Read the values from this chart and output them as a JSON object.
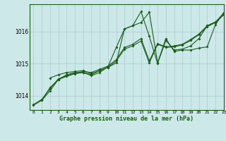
{
  "title": "Graphe pression niveau de la mer (hPa)",
  "bg_color": "#cce8e8",
  "grid_color": "#aacccc",
  "line_color": "#1a5c1a",
  "xlim": [
    -0.5,
    23
  ],
  "ylim": [
    1013.55,
    1016.85
  ],
  "yticks": [
    1014,
    1015,
    1016
  ],
  "xtick_labels": [
    "0",
    "1",
    "2",
    "3",
    "4",
    "5",
    "6",
    "7",
    "8",
    "9",
    "10",
    "11",
    "12",
    "13",
    "14",
    "15",
    "16",
    "17",
    "18",
    "19",
    "20",
    "21",
    "22",
    "23"
  ],
  "line1_x": [
    0,
    1,
    2,
    3,
    4,
    5,
    6,
    7,
    8,
    9,
    10,
    11,
    12,
    13,
    14,
    15,
    16,
    17,
    18,
    19,
    20,
    21,
    22,
    23
  ],
  "line1_y": [
    1013.7,
    1013.85,
    1014.25,
    1014.5,
    1014.6,
    1014.68,
    1014.72,
    1014.65,
    1014.78,
    1014.88,
    1015.08,
    1015.45,
    1015.55,
    1015.7,
    1015.02,
    1015.6,
    1015.5,
    1015.52,
    1015.58,
    1015.72,
    1015.9,
    1016.15,
    1016.28,
    1016.52
  ],
  "line2_x": [
    0,
    1,
    2,
    3,
    4,
    5,
    6,
    7,
    8,
    9,
    10,
    11,
    12,
    13,
    14,
    15,
    16,
    17,
    18,
    19,
    20,
    21,
    22,
    23
  ],
  "line2_y": [
    1013.72,
    1013.88,
    1014.22,
    1014.52,
    1014.62,
    1014.7,
    1014.75,
    1014.72,
    1014.82,
    1014.92,
    1015.12,
    1015.5,
    1015.6,
    1015.78,
    1015.08,
    1015.62,
    1015.52,
    1015.55,
    1015.6,
    1015.75,
    1015.92,
    1016.18,
    1016.3,
    1016.55
  ],
  "line3_x": [
    1,
    2,
    3,
    4,
    5,
    6,
    7,
    8,
    9,
    10,
    11,
    12,
    13,
    14,
    15,
    16,
    17,
    18,
    19,
    20,
    21,
    22,
    23
  ],
  "line3_y": [
    1013.85,
    1014.15,
    1014.5,
    1014.65,
    1014.72,
    1014.72,
    1014.62,
    1014.72,
    1014.9,
    1015.5,
    1016.08,
    1016.18,
    1016.62,
    1015.85,
    1015.0,
    1015.72,
    1015.42,
    1015.45,
    1015.55,
    1015.78,
    1016.18,
    1016.28,
    1016.58
  ],
  "line4_x": [
    2,
    3,
    4,
    5,
    6,
    7,
    8,
    9,
    10,
    11,
    12,
    13,
    14,
    15,
    16,
    17,
    18,
    19,
    20,
    21,
    22,
    23
  ],
  "line4_y": [
    1014.55,
    1014.65,
    1014.72,
    1014.75,
    1014.78,
    1014.68,
    1014.78,
    1014.88,
    1015.02,
    1016.08,
    1016.18,
    1016.28,
    1016.6,
    1015.02,
    1015.78,
    1015.38,
    1015.42,
    1015.42,
    1015.48,
    1015.52,
    1016.22,
    1016.58
  ]
}
